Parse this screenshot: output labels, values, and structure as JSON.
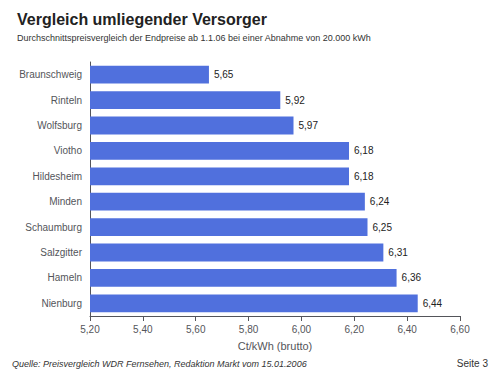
{
  "chart_data": {
    "type": "bar",
    "orientation": "horizontal",
    "title": "Vergleich umliegender Versorger",
    "subtitle": "Durchschnittspreisvergleich der Endpreise ab 1.1.06 bei einer Abnahme von 20.000 kWh",
    "xlabel": "Ct/kWh (brutto)",
    "annotations": [
      "Quelle: Preisvergleich WDR Fernsehen, Redaktion Markt vom 15.01.2006",
      "Seite 3"
    ],
    "categories": [
      "Braunschweig",
      "Rinteln",
      "Wolfsburg",
      "Viotho",
      "Hildesheim",
      "Minden",
      "Schaumburg",
      "Salzgitter",
      "Hameln",
      "Nienburg"
    ],
    "values": [
      5.65,
      5.92,
      5.97,
      6.18,
      6.18,
      6.24,
      6.25,
      6.31,
      6.36,
      6.44
    ],
    "value_labels": [
      "5,65",
      "5,92",
      "5,97",
      "6,18",
      "6,18",
      "6,24",
      "6,25",
      "6,31",
      "6,36",
      "6,44"
    ],
    "data_labels": true,
    "xlim": [
      5.2,
      6.6
    ],
    "xticks": [
      {
        "value": 5.2,
        "label": "5,20"
      },
      {
        "value": 5.4,
        "label": "5,40"
      },
      {
        "value": 5.6,
        "label": "5,60"
      },
      {
        "value": 5.8,
        "label": "5,80"
      },
      {
        "value": 6.0,
        "label": "6,00"
      },
      {
        "value": 6.2,
        "label": "6,20"
      },
      {
        "value": 6.4,
        "label": "6,40"
      },
      {
        "value": 6.6,
        "label": "6,60"
      }
    ],
    "grid": false
  }
}
